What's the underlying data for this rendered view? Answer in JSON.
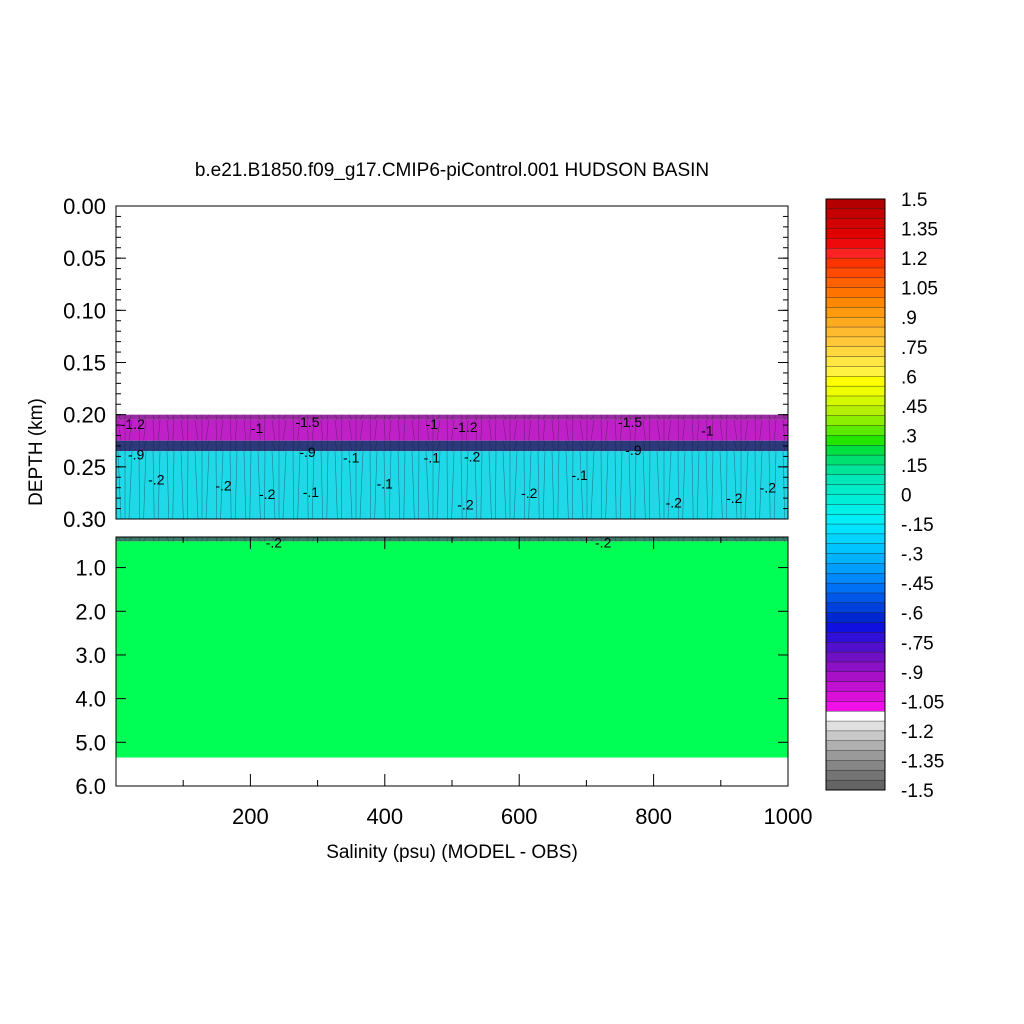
{
  "chart_data": {
    "type": "heatmap",
    "title": "b.e21.B1850.f09_g17.CMIP6-piControl.001 HUDSON BASIN",
    "xlabel": "Salinity (psu) (MODEL - OBS)",
    "ylabel": "DEPTH (km)",
    "xlim": [
      0,
      1000
    ],
    "x_ticks": [
      200,
      400,
      600,
      800,
      1000
    ],
    "x_tick_labels": [
      "200",
      "400",
      "600",
      "800",
      "1000"
    ],
    "upper_panel": {
      "ylim": [
        0.0,
        0.3
      ],
      "y_ticks": [
        0.0,
        0.05,
        0.1,
        0.15,
        0.2,
        0.25,
        0.3
      ],
      "y_tick_labels": [
        "0.00",
        "0.05",
        "0.10",
        "0.15",
        "0.20",
        "0.25",
        "0.30"
      ],
      "bands": [
        {
          "from": 0.0,
          "to": 0.2,
          "value": null,
          "color": "#ffffff"
        },
        {
          "from": 0.2,
          "to": 0.205,
          "value": -1.4,
          "color": "#9a2aa2"
        },
        {
          "from": 0.205,
          "to": 0.225,
          "value": -1.2,
          "color": "#c020c8"
        },
        {
          "from": 0.225,
          "to": 0.235,
          "value": -0.9,
          "color": "#2a3a7a"
        },
        {
          "from": 0.235,
          "to": 0.3,
          "value": -0.2,
          "color": "#1fd8e8"
        }
      ],
      "contour_labels": [
        {
          "text": "-1.2",
          "x": 25,
          "y": 0.209
        },
        {
          "text": "-1",
          "x": 210,
          "y": 0.213
        },
        {
          "text": "-1.5",
          "x": 285,
          "y": 0.207
        },
        {
          "text": "-1",
          "x": 470,
          "y": 0.209
        },
        {
          "text": "-1.2",
          "x": 520,
          "y": 0.212
        },
        {
          "text": "-1.5",
          "x": 765,
          "y": 0.207
        },
        {
          "text": "-1",
          "x": 880,
          "y": 0.215
        },
        {
          "text": "-.9",
          "x": 30,
          "y": 0.238
        },
        {
          "text": "-.9",
          "x": 285,
          "y": 0.236
        },
        {
          "text": "-.9",
          "x": 770,
          "y": 0.234
        },
        {
          "text": "-.1",
          "x": 350,
          "y": 0.241
        },
        {
          "text": "-.1",
          "x": 470,
          "y": 0.241
        },
        {
          "text": "-.2",
          "x": 530,
          "y": 0.24
        },
        {
          "text": "-.2",
          "x": 60,
          "y": 0.262
        },
        {
          "text": "-.2",
          "x": 160,
          "y": 0.268
        },
        {
          "text": "-.2",
          "x": 225,
          "y": 0.276
        },
        {
          "text": "-.1",
          "x": 290,
          "y": 0.274
        },
        {
          "text": "-.1",
          "x": 400,
          "y": 0.266
        },
        {
          "text": "-.2",
          "x": 520,
          "y": 0.286
        },
        {
          "text": "-.2",
          "x": 615,
          "y": 0.275
        },
        {
          "text": "-.1",
          "x": 690,
          "y": 0.258
        },
        {
          "text": "-.2",
          "x": 830,
          "y": 0.284
        },
        {
          "text": "-.2",
          "x": 920,
          "y": 0.28
        },
        {
          "text": "-.2",
          "x": 970,
          "y": 0.27
        }
      ]
    },
    "lower_panel": {
      "ylim": [
        0.3,
        6.0
      ],
      "y_ticks": [
        1.0,
        2.0,
        3.0,
        4.0,
        5.0,
        6.0
      ],
      "y_tick_labels": [
        "1.0",
        "2.0",
        "3.0",
        "4.0",
        "5.0",
        "6.0"
      ],
      "bands": [
        {
          "from": 0.3,
          "to": 0.4,
          "value": -0.2,
          "color": "#3a7a6a"
        },
        {
          "from": 0.4,
          "to": 5.35,
          "value": 0.05,
          "color": "#00ff55"
        },
        {
          "from": 5.35,
          "to": 6.0,
          "value": null,
          "color": "#ffffff"
        }
      ],
      "contour_labels": [
        {
          "text": "-.2",
          "x": 235,
          "y": 0.43
        },
        {
          "text": "-.2",
          "x": 725,
          "y": 0.43
        }
      ]
    },
    "colorbar": {
      "levels": [
        1.5,
        1.35,
        1.2,
        1.05,
        0.9,
        0.75,
        0.6,
        0.45,
        0.3,
        0.15,
        0,
        -0.15,
        -0.3,
        -0.45,
        -0.6,
        -0.75,
        -0.9,
        -1.05,
        -1.2,
        -1.35,
        -1.5
      ],
      "labels": [
        "1.5",
        "1.35",
        "1.2",
        "1.05",
        ".9",
        ".75",
        ".6",
        ".45",
        ".3",
        ".15",
        "0",
        "-.15",
        "-.3",
        "-.45",
        "-.6",
        "-.75",
        "-.9",
        "-1.05",
        "-1.2",
        "-1.35",
        "-1.5"
      ],
      "colors_top_to_bottom": [
        "#b40000",
        "#c40000",
        "#d20000",
        "#e00000",
        "#ee0a0a",
        "#ff2222",
        "#ff3300",
        "#ff4a00",
        "#ff6000",
        "#ff7400",
        "#ff8800",
        "#ff9a10",
        "#ffab20",
        "#ffbb30",
        "#ffc838",
        "#ffd840",
        "#ffe640",
        "#fff240",
        "#ffff00",
        "#eeff00",
        "#d4f800",
        "#b4f000",
        "#8cee00",
        "#5aeb00",
        "#22e600",
        "#00e040",
        "#00e070",
        "#00e49a",
        "#00e8b8",
        "#00ecc8",
        "#00eed8",
        "#00f0e8",
        "#00eef4",
        "#00e4ff",
        "#00d4ff",
        "#00c4ff",
        "#00b2ff",
        "#009eff",
        "#0088ff",
        "#0070f4",
        "#0058e8",
        "#0040dc",
        "#0028d0",
        "#1010e0",
        "#3010d8",
        "#5010cc",
        "#7010c4",
        "#8c10c4",
        "#a810c8",
        "#c010d0",
        "#d810d8",
        "#f010e8",
        "#ffffff",
        "#e0e0e0",
        "#c8c8c8",
        "#b0b0b0",
        "#9a9a9a",
        "#868686",
        "#747474",
        "#646464"
      ]
    }
  }
}
